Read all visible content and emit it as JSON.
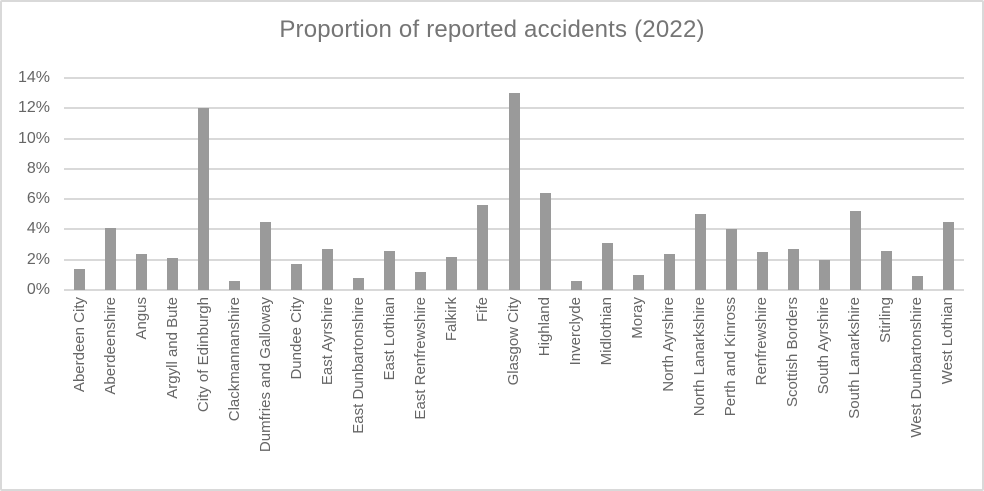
{
  "chart_data": {
    "type": "bar",
    "title": "Proportion of reported accidents (2022)",
    "xlabel": "",
    "ylabel": "",
    "ylim": [
      0,
      14
    ],
    "y_ticks": [
      "0%",
      "2%",
      "4%",
      "6%",
      "8%",
      "10%",
      "12%",
      "14%"
    ],
    "y_tick_values": [
      0,
      2,
      4,
      6,
      8,
      10,
      12,
      14
    ],
    "grid": true,
    "legend": false,
    "categories": [
      "Aberdeen City",
      "Aberdeenshire",
      "Angus",
      "Argyll and Bute",
      "City of Edinburgh",
      "Clackmannanshire",
      "Dumfries and Galloway",
      "Dundee City",
      "East Ayrshire",
      "East Dunbartonshire",
      "East Lothian",
      "East Renfrewshire",
      "Falkirk",
      "Fife",
      "Glasgow City",
      "Highland",
      "Inverclyde",
      "Midlothian",
      "Moray",
      "North Ayrshire",
      "North Lanarkshire",
      "Perth and Kinross",
      "Renfrewshire",
      "Scottish Borders",
      "South Ayrshire",
      "South Lanarkshire",
      "Stirling",
      "West Dunbartonshire",
      "West Lothian"
    ],
    "values": [
      1.4,
      4.1,
      2.4,
      2.1,
      12,
      0.6,
      4.5,
      1.7,
      2.7,
      0.8,
      2.6,
      1.2,
      2.2,
      5.6,
      13,
      6.4,
      0.6,
      3.1,
      1,
      2.4,
      5,
      4,
      2.5,
      2.7,
      2,
      5.2,
      2.6,
      0.9,
      4.5
    ],
    "colors": {
      "bar": "#9A9A9A",
      "gridline": "#D9D9D9",
      "axis_line": "#D9D9D9",
      "title_text": "#757575",
      "axis_label_text": "#666666",
      "frame_border": "#D9D9D9",
      "background": "#FFFFFF"
    }
  }
}
